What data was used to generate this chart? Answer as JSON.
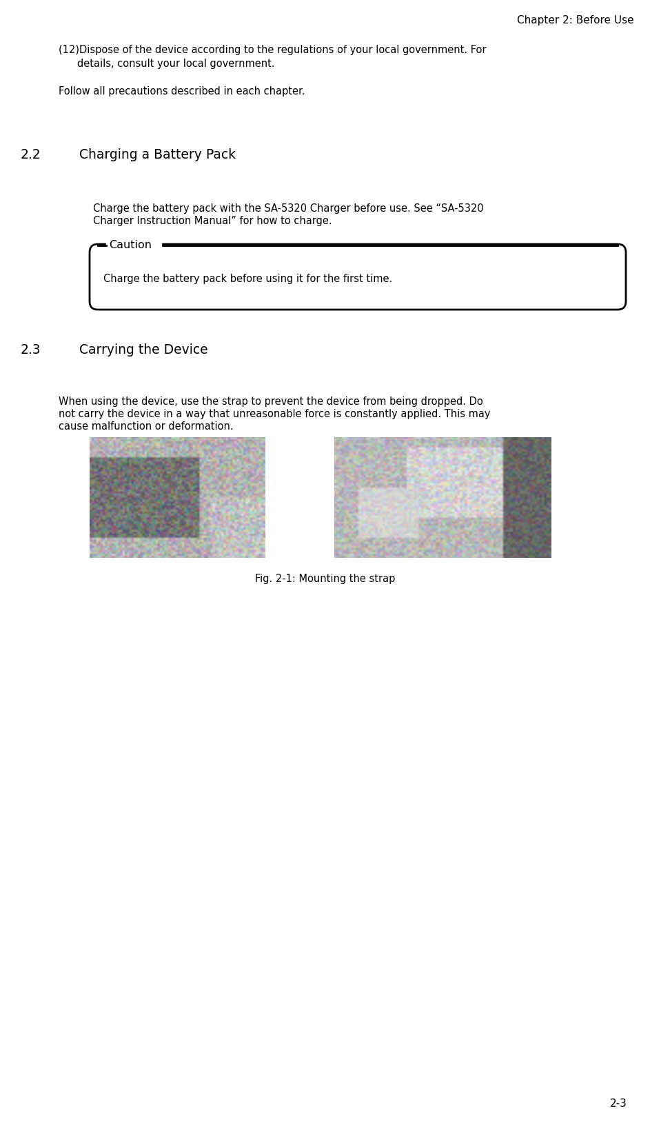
{
  "bg_color": "#ffffff",
  "text_color": "#000000",
  "header_text": "Chapter 2: Before Use",
  "page_number": "2-3",
  "para12_line1": "(12)Dispose of the device according to the regulations of your local government. For",
  "para12_line2": "      details, consult your local government.",
  "follow_text": "Follow all precautions described in each chapter.",
  "section22_num": "2.2",
  "section22_label": "Charging a Battery Pack",
  "charge_line1": "Charge the battery pack with the SA-5320 Charger before use. See “SA-5320",
  "charge_line2": "Charger Instruction Manual” for how to charge.",
  "caution_label": "Caution",
  "caution_text": "Charge the battery pack before using it for the first time.",
  "section23_num": "2.3",
  "section23_label": "Carrying the Device",
  "carry_line1": "When using the device, use the strap to prevent the device from being dropped. Do",
  "carry_line2": "not carry the device in a way that unreasonable force is constantly applied. This may",
  "carry_line3": "cause malfunction or deformation.",
  "fig_caption": "Fig. 2-1: Mounting the strap",
  "body_fontsize": 10.5,
  "section_fontsize": 13.5,
  "header_fontsize": 11,
  "page_fontsize": 11,
  "caution_fontsize": 11.5
}
